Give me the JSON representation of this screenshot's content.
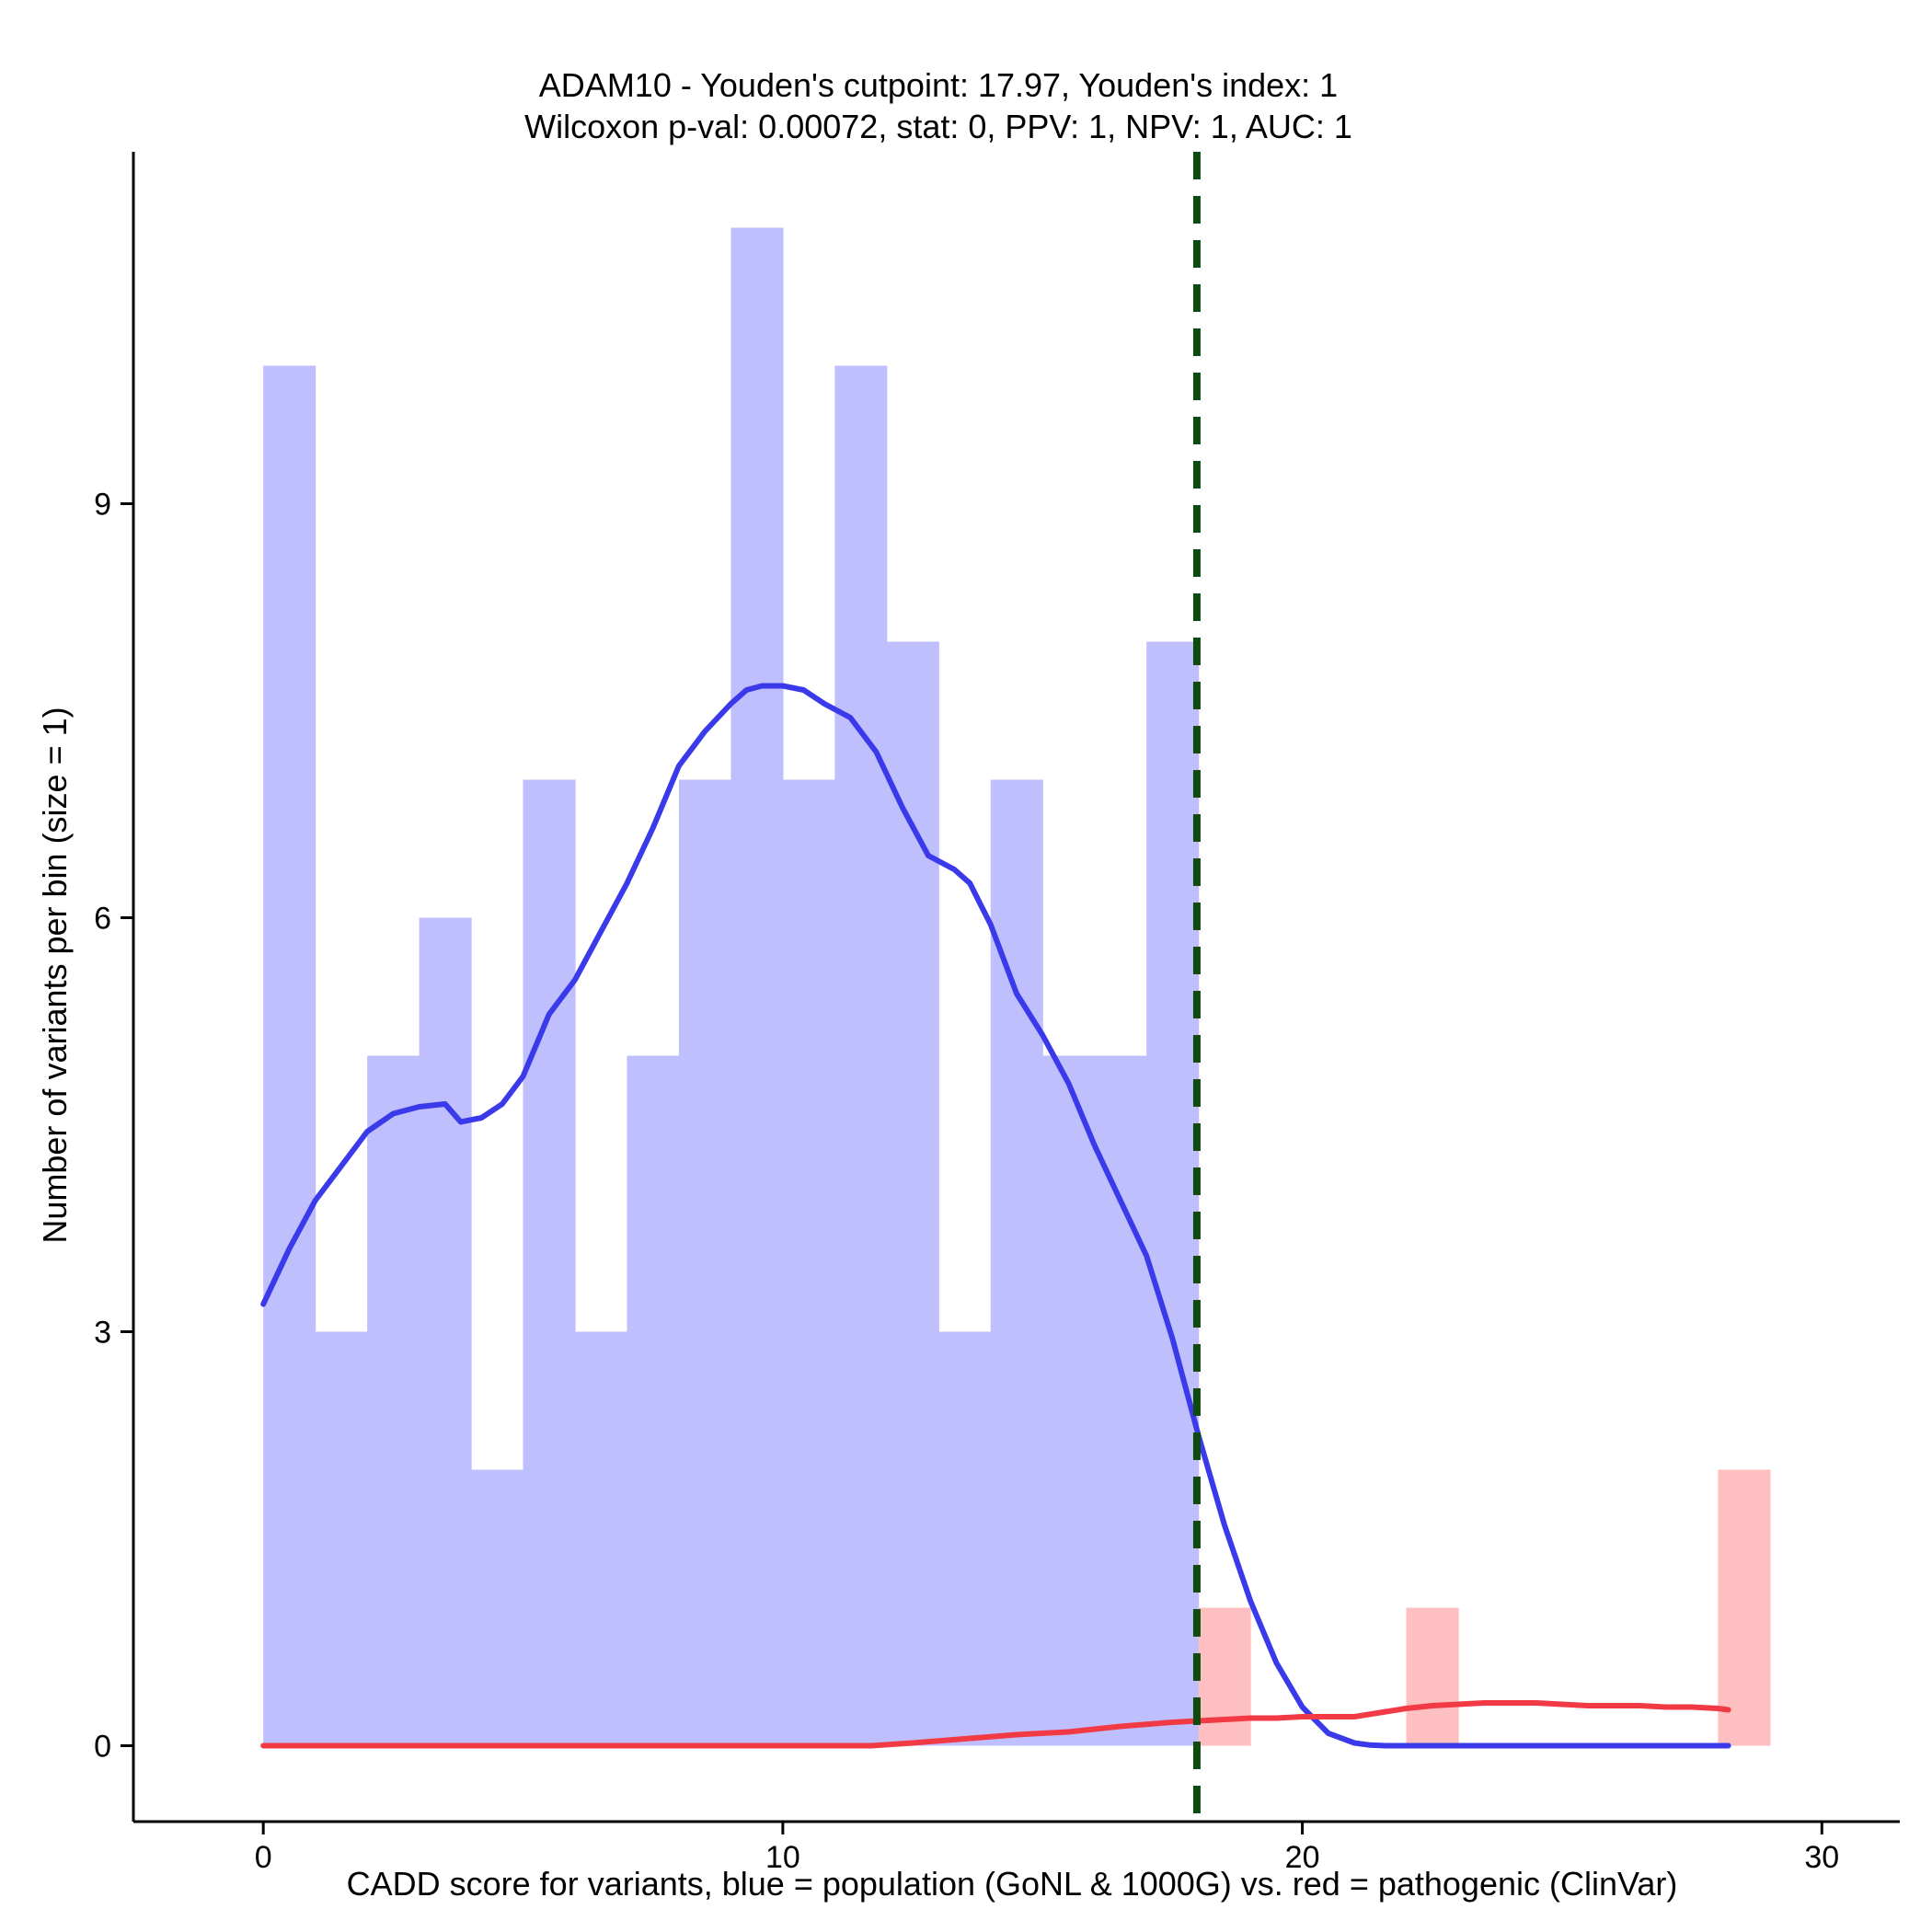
{
  "chart_data": {
    "type": "histogram",
    "title": "ADAM10 - Youden's cutpoint: 17.97, Youden's index: 1",
    "subtitle": "Wilcoxon p-val: 0.00072, stat: 0, PPV: 1, NPV: 1, AUC: 1",
    "xlabel": "CADD score for variants, blue = population (GoNL & 1000G) vs. red = pathogenic (ClinVar)",
    "ylabel": "Number of variants per bin (size = 1)",
    "xlim": [
      -2.5,
      31.5
    ],
    "ylim": [
      -0.55,
      11.55
    ],
    "x_ticks": [
      0,
      10,
      20,
      30
    ],
    "y_ticks": [
      0,
      3,
      6,
      9
    ],
    "bin_width": 1,
    "cutpoint": 17.97,
    "colors": {
      "population_bar": "#bfbffd",
      "population_line": "#3a3aea",
      "pathogenic_bar": "#fdbfbf",
      "pathogenic_line": "#f23a45",
      "cutpoint_line": "#0f4a0f"
    },
    "series": [
      {
        "kind": "bars",
        "color_key": "population",
        "bins": [
          {
            "x0": 0,
            "count": 10
          },
          {
            "x0": 1,
            "count": 3
          },
          {
            "x0": 2,
            "count": 5
          },
          {
            "x0": 3,
            "count": 6
          },
          {
            "x0": 4,
            "count": 2
          },
          {
            "x0": 5,
            "count": 7
          },
          {
            "x0": 6,
            "count": 3
          },
          {
            "x0": 7,
            "count": 5
          },
          {
            "x0": 8,
            "count": 7
          },
          {
            "x0": 9,
            "count": 11
          },
          {
            "x0": 10,
            "count": 7
          },
          {
            "x0": 11,
            "count": 10
          },
          {
            "x0": 12,
            "count": 8
          },
          {
            "x0": 13,
            "count": 3
          },
          {
            "x0": 14,
            "count": 7
          },
          {
            "x0": 15,
            "count": 5
          },
          {
            "x0": 16,
            "count": 5
          },
          {
            "x0": 17,
            "count": 8
          }
        ]
      },
      {
        "kind": "bars",
        "color_key": "pathogenic",
        "bins": [
          {
            "x0": 18,
            "count": 1
          },
          {
            "x0": 22,
            "count": 1
          },
          {
            "x0": 28,
            "count": 2
          }
        ]
      },
      {
        "kind": "density",
        "color_key": "population",
        "x": [
          0,
          0.5,
          1,
          1.5,
          2,
          2.5,
          3,
          3.5,
          3.8,
          4.2,
          4.6,
          5,
          5.5,
          6,
          6.5,
          7,
          7.5,
          8,
          8.5,
          9,
          9.3,
          9.6,
          10,
          10.4,
          10.8,
          11.3,
          11.8,
          12.3,
          12.8,
          13.3,
          13.6,
          14,
          14.5,
          15,
          15.5,
          16,
          16.5,
          17,
          17.5,
          18,
          18.5,
          19,
          19.5,
          20,
          20.5,
          21,
          21.3,
          21.6,
          22,
          22.5,
          23,
          24,
          25,
          26,
          27,
          28.2
        ],
        "y": [
          3.2,
          3.6,
          3.95,
          4.2,
          4.45,
          4.58,
          4.63,
          4.65,
          4.52,
          4.55,
          4.65,
          4.85,
          5.3,
          5.55,
          5.9,
          6.25,
          6.65,
          7.1,
          7.35,
          7.55,
          7.65,
          7.68,
          7.68,
          7.65,
          7.55,
          7.45,
          7.2,
          6.8,
          6.45,
          6.35,
          6.25,
          5.95,
          5.45,
          5.15,
          4.8,
          4.35,
          3.95,
          3.55,
          2.95,
          2.25,
          1.6,
          1.05,
          0.6,
          0.28,
          0.09,
          0.02,
          0.005,
          0,
          0,
          0,
          0,
          0,
          0,
          0,
          0,
          0
        ]
      },
      {
        "kind": "density",
        "color_key": "pathogenic",
        "x": [
          0,
          2,
          4,
          6,
          8,
          10,
          11.7,
          12.5,
          13.5,
          14.5,
          15.5,
          16.5,
          17.5,
          18,
          18.5,
          19,
          19.5,
          20,
          20.5,
          21,
          21.5,
          22,
          22.5,
          23,
          23.5,
          24,
          24.5,
          25,
          25.5,
          26,
          26.5,
          27,
          27.5,
          28,
          28.2
        ],
        "y": [
          0,
          0,
          0,
          0,
          0,
          0,
          0,
          0.02,
          0.05,
          0.08,
          0.1,
          0.14,
          0.17,
          0.18,
          0.19,
          0.2,
          0.2,
          0.21,
          0.21,
          0.21,
          0.24,
          0.27,
          0.29,
          0.3,
          0.31,
          0.31,
          0.31,
          0.3,
          0.29,
          0.29,
          0.29,
          0.28,
          0.28,
          0.27,
          0.26
        ]
      }
    ]
  }
}
